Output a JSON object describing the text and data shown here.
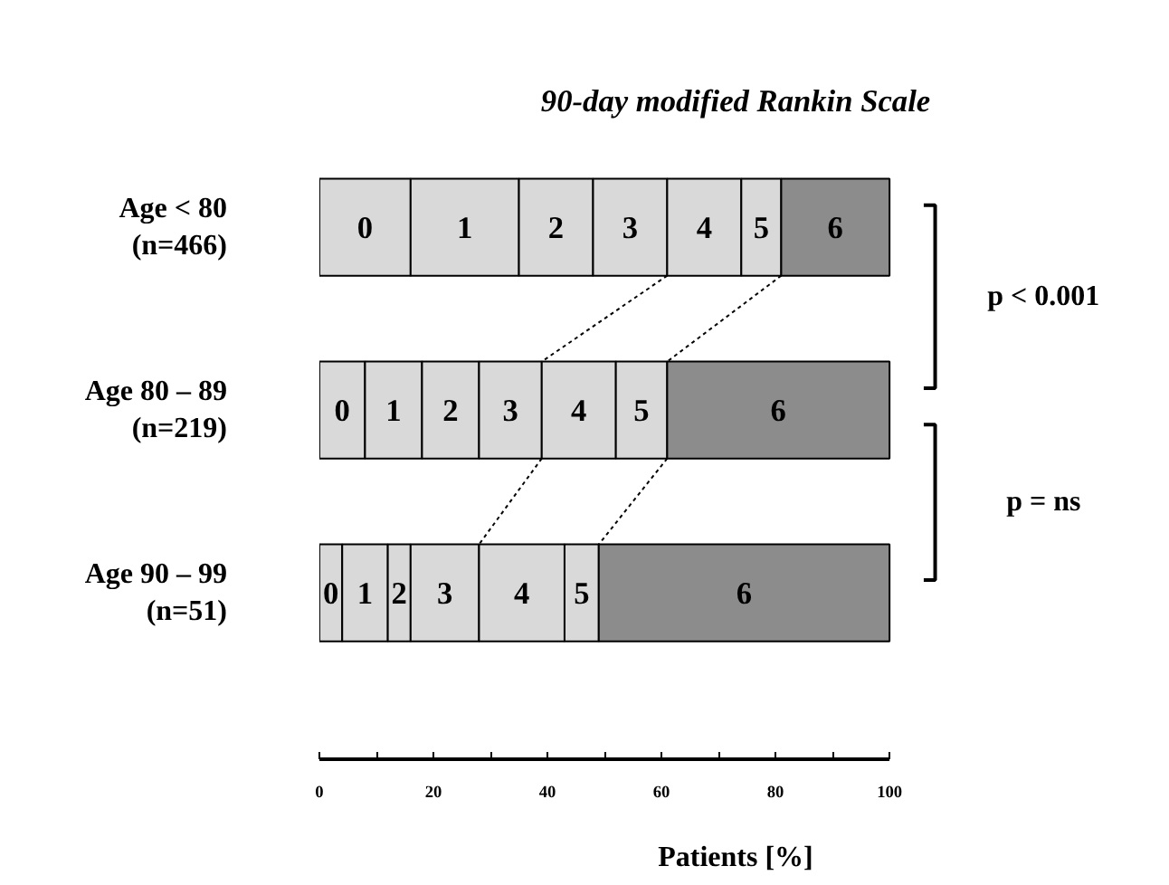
{
  "chart_data": {
    "type": "bar",
    "orientation": "horizontal",
    "stacked": true,
    "title": "90-day modified Rankin Scale",
    "xlabel": "Patients [%]",
    "categories": [
      "Age < 80\n(n=466)",
      "Age 80 – 89\n(n=219)",
      "Age 90 – 99\n(n=51)"
    ],
    "series": [
      {
        "name": "0",
        "color": "#d9d9d9",
        "values": [
          16,
          8,
          4
        ]
      },
      {
        "name": "1",
        "color": "#d9d9d9",
        "values": [
          19,
          10,
          8
        ]
      },
      {
        "name": "2",
        "color": "#d9d9d9",
        "values": [
          13,
          10,
          4
        ]
      },
      {
        "name": "3",
        "color": "#d9d9d9",
        "values": [
          13,
          11,
          12
        ]
      },
      {
        "name": "4",
        "color": "#d9d9d9",
        "values": [
          13,
          13,
          15
        ]
      },
      {
        "name": "5",
        "color": "#d9d9d9",
        "values": [
          7,
          9,
          6
        ]
      },
      {
        "name": "6",
        "color": "#8c8c8c",
        "values": [
          19,
          39,
          51
        ]
      }
    ],
    "xlim": [
      0,
      100
    ],
    "xticks": [
      0,
      {
        "value": 10,
        "label": null
      },
      20,
      {
        "value": 30,
        "label": null
      },
      40,
      {
        "value": 50,
        "label": null
      },
      60,
      {
        "value": 70,
        "label": null
      },
      80,
      {
        "value": 90,
        "label": null
      },
      100
    ],
    "annotations": [
      "p < 0.001",
      "p = ns"
    ],
    "grid": false
  }
}
